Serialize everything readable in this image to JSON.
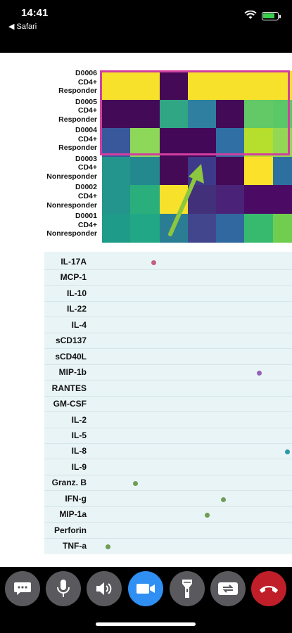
{
  "status": {
    "time": "14:41",
    "back_app": "◀ Safari",
    "battery_level": 0.85,
    "battery_color": "#3ccf4e"
  },
  "heatmap": {
    "samples": [
      {
        "id": "D0006",
        "cells": "CD4+",
        "status": "Responder"
      },
      {
        "id": "D0005",
        "cells": "CD4+",
        "status": "Responder"
      },
      {
        "id": "D0004",
        "cells": "CD4+",
        "status": "Responder"
      },
      {
        "id": "D0003",
        "cells": "CD4+",
        "status": "Nonresponder"
      },
      {
        "id": "D0002",
        "cells": "CD4+",
        "status": "Nonresponder"
      },
      {
        "id": "D0001",
        "cells": "CD4+",
        "status": "Nonresponder"
      }
    ],
    "colors": [
      [
        "#f7e12a",
        "#f7e12a",
        "#440a55",
        "#f7e12a",
        "#f7e12a",
        "#f7e12a",
        "#f7e12a"
      ],
      [
        "#430a57",
        "#430a57",
        "#31a684",
        "#2f7fa0",
        "#430a57",
        "#63c966",
        "#5bc868"
      ],
      [
        "#39589c",
        "#8dd759",
        "#440858",
        "#440858",
        "#2f6fa3",
        "#b6de2d",
        "#92d854"
      ],
      [
        "#24958c",
        "#23898e",
        "#440a55",
        "#3d3a8a",
        "#440a55",
        "#fbe12a",
        "#2d709f"
      ],
      [
        "#24958c",
        "#2aae7c",
        "#f7e12a",
        "#43307a",
        "#4a2378",
        "#4b0b64",
        "#4b0b64"
      ],
      [
        "#1f9c89",
        "#21a786",
        "#2b7d94",
        "#41468d",
        "#31689f",
        "#38ba6e",
        "#71cd4e"
      ]
    ],
    "highlight_color": "#d23fa0",
    "arrow_color": "#8dc63f"
  },
  "cytokines": {
    "labels": [
      "IL-17A",
      "MCP-1",
      "IL-10",
      "IL-22",
      "IL-4",
      "sCD137",
      "sCD40L",
      "MIP-1b",
      "RANTES",
      "GM-CSF",
      "IL-2",
      "IL-5",
      "IL-8",
      "IL-9",
      "Granz. B",
      "IFN-g",
      "MIP-1a",
      "Perforin",
      "TNF-a"
    ],
    "dots": [
      {
        "row": 0,
        "value": 0.33,
        "color": "#c0607f"
      },
      {
        "row": 7,
        "value": 0.86,
        "color": "#9460b8"
      },
      {
        "row": 12,
        "value": 1.0,
        "color": "#2e97a6"
      },
      {
        "row": 14,
        "value": 0.24,
        "color": "#6d9e54"
      },
      {
        "row": 15,
        "value": 0.68,
        "color": "#6d9e54"
      },
      {
        "row": 16,
        "value": 0.6,
        "color": "#6d9e54"
      },
      {
        "row": 18,
        "value": 0.1,
        "color": "#6d9e54"
      }
    ]
  },
  "toolbar": {
    "buttons": [
      "chat-icon",
      "microphone-icon",
      "speaker-icon",
      "video-camera-icon",
      "flashlight-icon",
      "switch-camera-icon",
      "hang-up-icon"
    ],
    "active_color": "#2f8ff2",
    "hangup_color": "#c01f2a"
  }
}
